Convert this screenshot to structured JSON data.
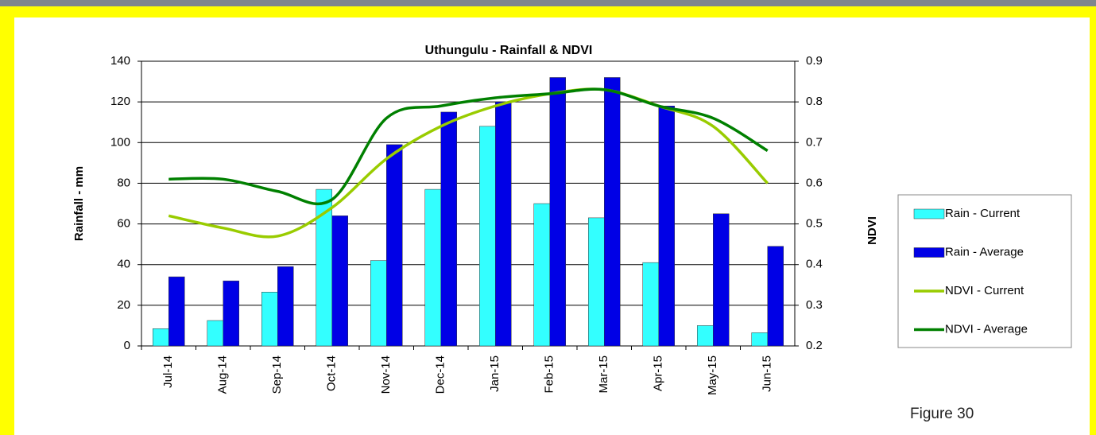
{
  "chart_data": {
    "type": "bar",
    "title": "Uthungulu - Rainfall & NDVI",
    "categories": [
      "Jul-14",
      "Aug-14",
      "Sep-14",
      "Oct-14",
      "Nov-14",
      "Dec-14",
      "Jan-15",
      "Feb-15",
      "Mar-15",
      "Apr-15",
      "May-15",
      "Jun-15"
    ],
    "series": [
      {
        "name": "Rain - Current",
        "color": "#33ffff",
        "values": [
          8.5,
          12.5,
          26.5,
          77,
          42,
          77,
          108,
          70,
          63,
          41,
          10,
          6.5
        ]
      },
      {
        "name": "Rain - Average",
        "color": "#0000e6",
        "values": [
          34,
          32,
          39,
          64,
          99,
          115,
          120,
          132,
          132,
          118,
          65,
          49
        ]
      },
      {
        "name": "NDVI - Current",
        "color": "#99cc00",
        "type": "line",
        "axis": "y2",
        "values": [
          0.52,
          0.49,
          0.47,
          0.54,
          0.66,
          0.74,
          0.79,
          0.82,
          0.83,
          0.79,
          0.74,
          0.6
        ]
      },
      {
        "name": "NDVI - Average",
        "color": "#008000",
        "type": "line",
        "axis": "y2",
        "values": [
          0.61,
          0.61,
          0.58,
          0.56,
          0.76,
          0.79,
          0.81,
          0.82,
          0.83,
          0.79,
          0.76,
          0.68
        ]
      }
    ],
    "ylabel": "Rainfall - mm",
    "y2label": "NDVI",
    "ylim": [
      0,
      140
    ],
    "yticks": [
      0,
      20,
      40,
      60,
      80,
      100,
      120,
      140
    ],
    "y2lim": [
      0.2,
      0.9
    ],
    "y2ticks": [
      0.2,
      0.3,
      0.4,
      0.5,
      0.6,
      0.7,
      0.8,
      0.9
    ],
    "grid": true,
    "legend": "right",
    "caption": "Figure 30"
  }
}
